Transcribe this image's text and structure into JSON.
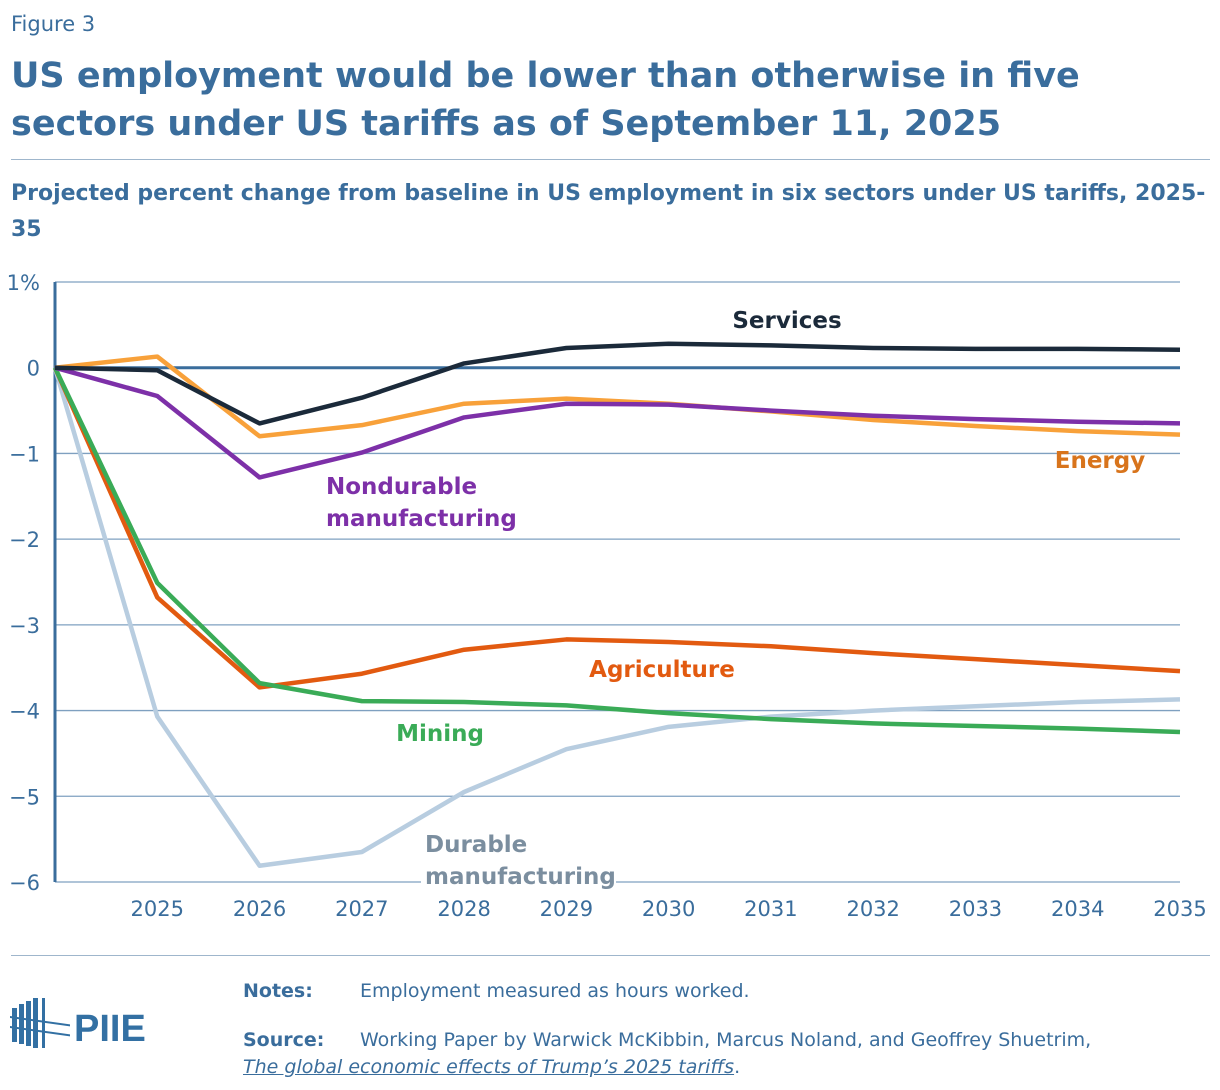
{
  "figure_label": "Figure 3",
  "title": "US employment would be lower than otherwise in five sectors under US tariffs as of September 11, 2025",
  "subtitle": "Projected percent change from baseline in US employment in six sectors under US tariffs, 2025-35",
  "chart_data": {
    "type": "line",
    "x": [
      2024,
      2025,
      2026,
      2027,
      2028,
      2029,
      2030,
      2031,
      2032,
      2033,
      2034,
      2035
    ],
    "x_tick_labels": [
      "2025",
      "2026",
      "2027",
      "2028",
      "2029",
      "2030",
      "2031",
      "2032",
      "2033",
      "2034",
      "2035"
    ],
    "y_tick_labels": [
      "1%",
      "0",
      "−1",
      "−2",
      "−3",
      "−4",
      "−5",
      "−6"
    ],
    "ylim": [
      -6,
      1
    ],
    "grid": true,
    "series": [
      {
        "name": "Services",
        "color": "#1b2a3a",
        "label_color": "#1b2a3a",
        "values": [
          0,
          -0.03,
          -0.65,
          -0.35,
          0.05,
          0.23,
          0.28,
          0.26,
          0.23,
          0.22,
          0.22,
          0.21
        ]
      },
      {
        "name": "Energy",
        "color": "#f8a13a",
        "label_color": "#d8741c",
        "values": [
          0,
          0.13,
          -0.8,
          -0.67,
          -0.42,
          -0.36,
          -0.42,
          -0.51,
          -0.61,
          -0.68,
          -0.74,
          -0.78
        ]
      },
      {
        "name": "Nondurable manufacturing",
        "color": "#7d30a8",
        "label_color": "#7d30a8",
        "values": [
          0,
          -0.33,
          -1.28,
          -0.99,
          -0.58,
          -0.42,
          -0.43,
          -0.5,
          -0.56,
          -0.6,
          -0.63,
          -0.65
        ]
      },
      {
        "name": "Agriculture",
        "color": "#e25a10",
        "label_color": "#e25a10",
        "values": [
          0,
          -2.68,
          -3.73,
          -3.57,
          -3.29,
          -3.17,
          -3.2,
          -3.25,
          -3.33,
          -3.4,
          -3.47,
          -3.54
        ]
      },
      {
        "name": "Mining",
        "color": "#3aab57",
        "label_color": "#3aab57",
        "values": [
          0,
          -2.51,
          -3.68,
          -3.89,
          -3.9,
          -3.94,
          -4.03,
          -4.1,
          -4.15,
          -4.18,
          -4.21,
          -4.25
        ]
      },
      {
        "name": "Durable manufacturing",
        "color": "#b8cde0",
        "label_color": "#7b8e9f",
        "values": [
          0,
          -4.07,
          -5.81,
          -5.65,
          -4.95,
          -4.45,
          -4.19,
          -4.07,
          -4.0,
          -3.95,
          -3.9,
          -3.87
        ]
      }
    ]
  },
  "notes": {
    "label": "Notes:",
    "text": "Employment measured as hours worked."
  },
  "source": {
    "label": "Source:",
    "text": "Working Paper by Warwick McKibbin, Marcus Noland, and Geoffrey Shuetrim,",
    "link": "The global economic effects of Trump’s 2025 tariffs",
    "end": "."
  },
  "logo": "PIIE"
}
